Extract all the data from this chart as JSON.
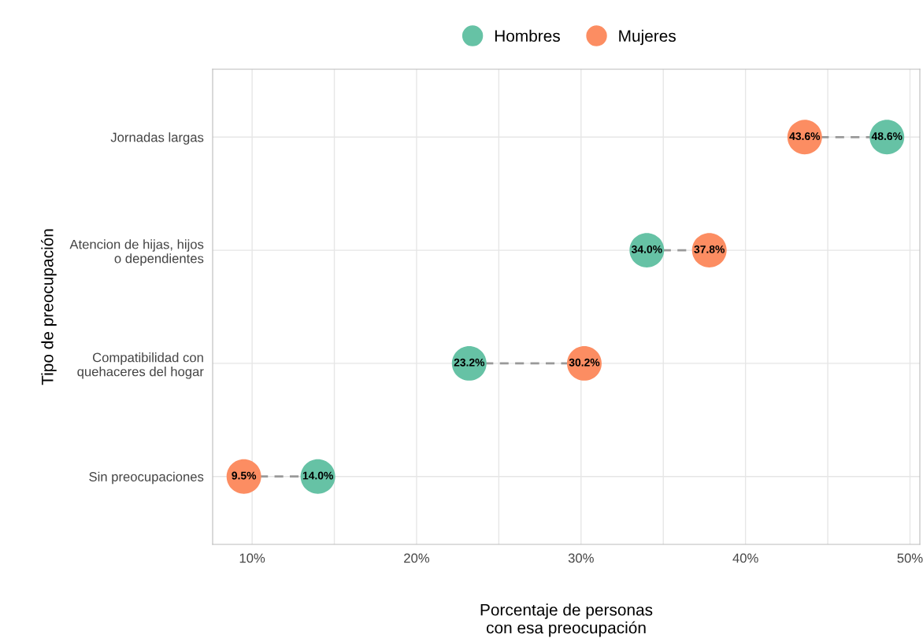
{
  "chart_data": {
    "type": "scatter",
    "orientation": "horizontal",
    "xlabel": "Porcentaje de personas\ncon esa preocupación",
    "ylabel": "Tipo de preocupación",
    "categories": [
      "Jornadas largas",
      "Atencion de hijas, hijos\no dependientes",
      "Compatibilidad con\nquehaceres del hogar",
      "Sin preocupaciones"
    ],
    "series": [
      {
        "name": "Hombres",
        "color": "#66c2a5",
        "values": [
          48.6,
          34.0,
          23.2,
          14.0
        ],
        "value_labels": [
          "48.6%",
          "34.0%",
          "23.2%",
          "14.0%"
        ]
      },
      {
        "name": "Mujeres",
        "color": "#fc8d62",
        "values": [
          43.6,
          37.8,
          30.2,
          9.5
        ],
        "value_labels": [
          "43.6%",
          "37.8%",
          "30.2%",
          "9.5%"
        ]
      }
    ],
    "xlim": [
      7.6,
      50.6
    ],
    "xticks": [
      {
        "value": 10,
        "label": "10%"
      },
      {
        "value": 15,
        "label": null
      },
      {
        "value": 20,
        "label": "20%"
      },
      {
        "value": 25,
        "label": null
      },
      {
        "value": 30,
        "label": "30%"
      },
      {
        "value": 35,
        "label": null
      },
      {
        "value": 40,
        "label": "40%"
      },
      {
        "value": 45,
        "label": null
      },
      {
        "value": 50,
        "label": "50%"
      }
    ],
    "grid": true,
    "legend": "top",
    "marker": "circle",
    "line_style": "dashed"
  }
}
